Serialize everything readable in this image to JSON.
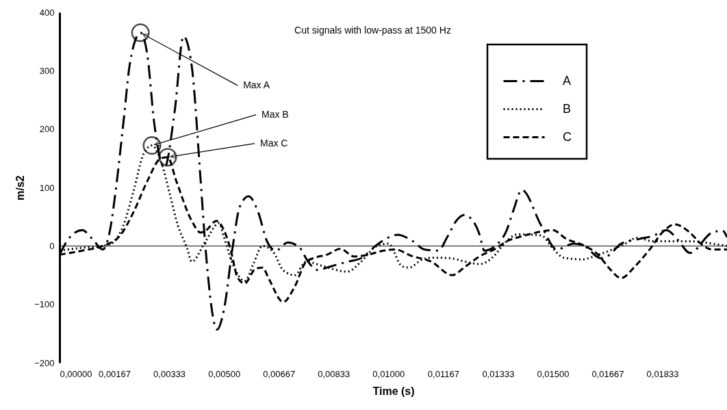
{
  "chart_data": {
    "type": "line",
    "title": "Cut signals with low-pass at 1500 Hz",
    "xlabel": "Time (s)",
    "ylabel": "m/s2",
    "xlim": [
      0,
      0.0203
    ],
    "xticks": [
      {
        "value": 0,
        "label": "0,00000"
      },
      {
        "value": 0.0016667,
        "label": "0,00167"
      },
      {
        "value": 0.0033333,
        "label": "0,00333"
      },
      {
        "value": 0.005,
        "label": "0,00500"
      },
      {
        "value": 0.0066667,
        "label": "0,00667"
      },
      {
        "value": 0.0083333,
        "label": "0,00833"
      },
      {
        "value": 0.01,
        "label": "0,01000"
      },
      {
        "value": 0.0116667,
        "label": "0,01167"
      },
      {
        "value": 0.0133333,
        "label": "0,01333"
      },
      {
        "value": 0.015,
        "label": "0,01500"
      },
      {
        "value": 0.0166667,
        "label": "0,01667"
      },
      {
        "value": 0.0183333,
        "label": "0,01833"
      }
    ],
    "ylim": [
      -200,
      400
    ],
    "yticks": [
      -200,
      -100,
      0,
      100,
      200,
      300,
      400
    ],
    "grid": false,
    "legend": "top right",
    "marker": "none",
    "ref_lines": [
      {
        "axis": "y",
        "value": 0,
        "color": "#000000",
        "line_style": "solid"
      }
    ],
    "annotations": [
      {
        "text": "Max A",
        "x": 0.00246,
        "y": 365
      },
      {
        "text": "Max B",
        "x": 0.00281,
        "y": 172
      },
      {
        "text": "Max C",
        "x": 0.00329,
        "y": 152
      }
    ],
    "series": [
      {
        "name": "A",
        "color": "#000000",
        "line_style": "dashed",
        "x": [
          0,
          0.00027,
          0.00069,
          0.001,
          0.00131,
          0.00152,
          0.00173,
          0.00194,
          0.00215,
          0.00246,
          0.00267,
          0.00288,
          0.00319,
          0.0035,
          0.00377,
          0.00402,
          0.00429,
          0.00444,
          0.00479,
          0.005,
          0.00527,
          0.00548,
          0.00575,
          0.00604,
          0.00631,
          0.00658,
          0.00694,
          0.00729,
          0.00756,
          0.00783,
          0.00825,
          0.00875,
          0.00917,
          0.00965,
          0.00992,
          0.01027,
          0.01075,
          0.0111,
          0.01152,
          0.01179,
          0.01208,
          0.01231,
          0.01256,
          0.01277,
          0.01292,
          0.01325,
          0.0136,
          0.01381,
          0.01406,
          0.01465,
          0.01513,
          0.01563,
          0.01596,
          0.01646,
          0.01673,
          0.01708,
          0.01763,
          0.01804,
          0.01846,
          0.01881,
          0.01917,
          0.01985,
          0.02017,
          0.0203
        ],
        "values": [
          -15,
          12,
          27,
          12,
          -6,
          23,
          105,
          210,
          316,
          365,
          327,
          210,
          134,
          230,
          359,
          308,
          113,
          -4,
          -143,
          -109,
          0,
          67,
          85,
          58,
          8,
          -8,
          6,
          -2,
          -27,
          -41,
          -35,
          -27,
          -21,
          2,
          12,
          19,
          8,
          -6,
          -8,
          15,
          44,
          53,
          44,
          20,
          -8,
          0,
          27,
          62,
          96,
          35,
          -6,
          4,
          0,
          -21,
          -15,
          4,
          12,
          17,
          27,
          10,
          -12,
          23,
          26,
          15
        ]
      },
      {
        "name": "B",
        "color": "#000000",
        "line_style": "dotted",
        "x": [
          0,
          0.00069,
          0.00131,
          0.00163,
          0.00194,
          0.00225,
          0.00256,
          0.00281,
          0.00313,
          0.00333,
          0.0036,
          0.00388,
          0.00402,
          0.00444,
          0.00485,
          0.005,
          0.00527,
          0.00563,
          0.0059,
          0.00617,
          0.00652,
          0.00679,
          0.00715,
          0.0075,
          0.00804,
          0.00875,
          0.00917,
          0.00965,
          0.01,
          0.01042,
          0.01063,
          0.01104,
          0.01138,
          0.01188,
          0.01235,
          0.01277,
          0.01325,
          0.01346,
          0.01396,
          0.01465,
          0.015,
          0.01533,
          0.0159,
          0.01638,
          0.01673,
          0.01721,
          0.01756,
          0.01804,
          0.01846,
          0.01917,
          0.01985,
          0.0203
        ],
        "values": [
          -8,
          -3,
          0,
          6,
          35,
          94,
          158,
          172,
          137,
          94,
          35,
          -4,
          -27,
          8,
          39,
          15,
          -31,
          -60,
          -30,
          0,
          -12,
          -41,
          -50,
          -27,
          -35,
          -44,
          -27,
          0,
          4,
          -35,
          -37,
          -23,
          -20,
          -21,
          -27,
          -31,
          -15,
          0,
          20,
          18,
          -4,
          -20,
          -23,
          -15,
          -8,
          4,
          14,
          8,
          8,
          8,
          4,
          0
        ]
      },
      {
        "name": "C",
        "color": "#000000",
        "line_style": "dashed",
        "x": [
          0,
          0.00069,
          0.00131,
          0.00183,
          0.00225,
          0.00267,
          0.00308,
          0.00329,
          0.00354,
          0.00402,
          0.00429,
          0.00446,
          0.00477,
          0.005,
          0.00521,
          0.00542,
          0.00563,
          0.00596,
          0.00617,
          0.00638,
          0.0068,
          0.00715,
          0.0075,
          0.00777,
          0.00813,
          0.00854,
          0.00896,
          0.00938,
          0.00985,
          0.01021,
          0.0107,
          0.01131,
          0.01194,
          0.01235,
          0.01277,
          0.01325,
          0.0136,
          0.01396,
          0.01429,
          0.015,
          0.01542,
          0.0159,
          0.01638,
          0.01673,
          0.01708,
          0.0175,
          0.01792,
          0.0184,
          0.01871,
          0.01917,
          0.0195,
          0.01985,
          0.0203
        ],
        "values": [
          -15,
          -8,
          0,
          17,
          58,
          111,
          150,
          152,
          113,
          43,
          23,
          27,
          43,
          27,
          -8,
          -55,
          -64,
          -39,
          -37,
          -58,
          -96,
          -70,
          -27,
          -20,
          -15,
          -5,
          -18,
          -15,
          -8,
          -6,
          -17,
          -27,
          -50,
          -35,
          -18,
          -5,
          8,
          15,
          20,
          27,
          12,
          2,
          -15,
          -39,
          -55,
          -35,
          -8,
          27,
          37,
          23,
          4,
          -6,
          -6
        ]
      }
    ]
  }
}
